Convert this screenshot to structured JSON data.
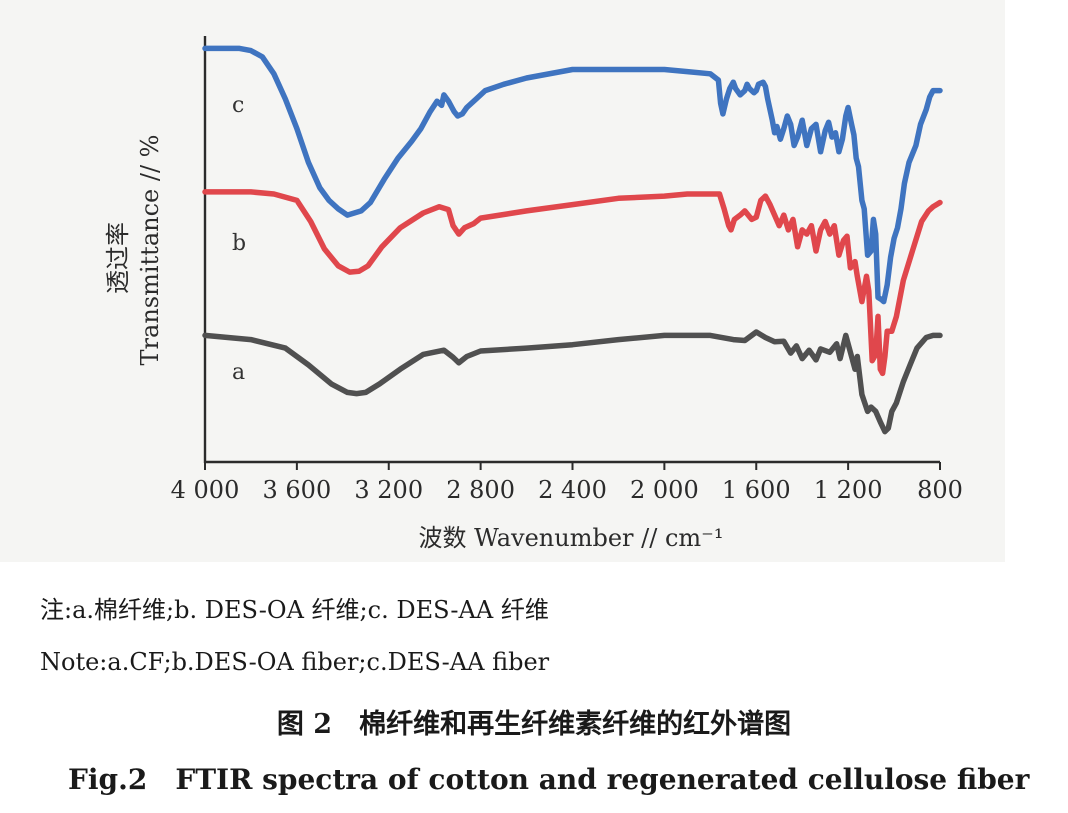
{
  "chart_data": {
    "type": "line",
    "xlabel": "波数 Wavenumber // cm⁻¹",
    "ylabel_cn": "透过率",
    "ylabel_en": "Transmittance // %",
    "xlim": [
      4000,
      800
    ],
    "x_reversed": true,
    "x_ticks": [
      4000,
      3600,
      3200,
      2800,
      2400,
      2000,
      1600,
      1200,
      800
    ],
    "x_tick_labels": [
      "4 000",
      "3 600",
      "3 200",
      "2 800",
      "2 400",
      "2 000",
      "1 600",
      "1 200",
      "800"
    ],
    "y_ticks_shown": false,
    "grid": false,
    "legend": "none",
    "series": [
      {
        "name": "a",
        "color": "#505050",
        "points": [
          [
            4000,
            30.0
          ],
          [
            3800,
            29.0
          ],
          [
            3650,
            27.0
          ],
          [
            3550,
            23.0
          ],
          [
            3450,
            18.5
          ],
          [
            3380,
            16.5
          ],
          [
            3340,
            16.2
          ],
          [
            3300,
            16.5
          ],
          [
            3240,
            18.5
          ],
          [
            3150,
            22.0
          ],
          [
            3050,
            25.5
          ],
          [
            2960,
            26.5
          ],
          [
            2920,
            24.8
          ],
          [
            2895,
            23.5
          ],
          [
            2860,
            25.0
          ],
          [
            2800,
            26.3
          ],
          [
            2600,
            27.0
          ],
          [
            2400,
            27.8
          ],
          [
            2200,
            29.0
          ],
          [
            2000,
            30.0
          ],
          [
            1800,
            30.0
          ],
          [
            1700,
            29.0
          ],
          [
            1650,
            28.8
          ],
          [
            1600,
            30.8
          ],
          [
            1560,
            29.5
          ],
          [
            1520,
            28.5
          ],
          [
            1480,
            28.6
          ],
          [
            1450,
            25.8
          ],
          [
            1425,
            27.5
          ],
          [
            1400,
            24.5
          ],
          [
            1370,
            26.5
          ],
          [
            1340,
            24.2
          ],
          [
            1320,
            26.8
          ],
          [
            1280,
            26.0
          ],
          [
            1250,
            28.0
          ],
          [
            1235,
            24.5
          ],
          [
            1210,
            30.0
          ],
          [
            1200,
            28.0
          ],
          [
            1170,
            22.0
          ],
          [
            1160,
            25.0
          ],
          [
            1140,
            16.0
          ],
          [
            1115,
            12.0
          ],
          [
            1100,
            13.0
          ],
          [
            1080,
            12.0
          ],
          [
            1060,
            9.5
          ],
          [
            1040,
            7.2
          ],
          [
            1025,
            8.0
          ],
          [
            1010,
            12.0
          ],
          [
            990,
            14.0
          ],
          [
            960,
            19.0
          ],
          [
            930,
            23.0
          ],
          [
            900,
            27.0
          ],
          [
            860,
            29.5
          ],
          [
            830,
            30.0
          ],
          [
            800,
            30.0
          ]
        ]
      },
      {
        "name": "b",
        "color": "#e0474c",
        "points": [
          [
            4000,
            64.0
          ],
          [
            3800,
            64.0
          ],
          [
            3700,
            63.5
          ],
          [
            3600,
            62.0
          ],
          [
            3540,
            57.0
          ],
          [
            3480,
            50.5
          ],
          [
            3420,
            46.5
          ],
          [
            3370,
            45.0
          ],
          [
            3330,
            45.2
          ],
          [
            3290,
            46.5
          ],
          [
            3230,
            51.0
          ],
          [
            3150,
            55.5
          ],
          [
            3050,
            59.0
          ],
          [
            2980,
            60.5
          ],
          [
            2940,
            59.8
          ],
          [
            2920,
            56.0
          ],
          [
            2895,
            54.0
          ],
          [
            2870,
            55.5
          ],
          [
            2830,
            56.5
          ],
          [
            2800,
            57.8
          ],
          [
            2600,
            59.5
          ],
          [
            2400,
            61.0
          ],
          [
            2200,
            62.5
          ],
          [
            2000,
            63.0
          ],
          [
            1900,
            63.5
          ],
          [
            1760,
            63.5
          ],
          [
            1740,
            60.0
          ],
          [
            1720,
            56.0
          ],
          [
            1710,
            55.0
          ],
          [
            1695,
            57.5
          ],
          [
            1670,
            58.5
          ],
          [
            1650,
            59.5
          ],
          [
            1620,
            57.5
          ],
          [
            1600,
            58.0
          ],
          [
            1580,
            62.0
          ],
          [
            1560,
            63.0
          ],
          [
            1540,
            61.0
          ],
          [
            1520,
            58.5
          ],
          [
            1500,
            56.0
          ],
          [
            1480,
            58.5
          ],
          [
            1460,
            55.0
          ],
          [
            1440,
            57.5
          ],
          [
            1420,
            51.0
          ],
          [
            1400,
            55.0
          ],
          [
            1380,
            54.0
          ],
          [
            1360,
            56.0
          ],
          [
            1340,
            50.0
          ],
          [
            1320,
            55.0
          ],
          [
            1300,
            57.0
          ],
          [
            1280,
            54.0
          ],
          [
            1260,
            56.0
          ],
          [
            1240,
            49.0
          ],
          [
            1220,
            52.5
          ],
          [
            1205,
            53.5
          ],
          [
            1190,
            46.0
          ],
          [
            1170,
            47.5
          ],
          [
            1160,
            44.0
          ],
          [
            1140,
            38.0
          ],
          [
            1120,
            44.0
          ],
          [
            1110,
            40.5
          ],
          [
            1095,
            24.0
          ],
          [
            1080,
            25.5
          ],
          [
            1070,
            34.5
          ],
          [
            1060,
            22.0
          ],
          [
            1050,
            21.0
          ],
          [
            1040,
            25.0
          ],
          [
            1030,
            31.0
          ],
          [
            1010,
            31.0
          ],
          [
            990,
            34.5
          ],
          [
            960,
            43.0
          ],
          [
            920,
            50.0
          ],
          [
            880,
            57.0
          ],
          [
            850,
            59.5
          ],
          [
            830,
            60.5
          ],
          [
            800,
            61.5
          ]
        ]
      },
      {
        "name": "c",
        "color": "#3f74c0",
        "points": [
          [
            4000,
            98.0
          ],
          [
            3850,
            98.0
          ],
          [
            3800,
            97.5
          ],
          [
            3750,
            96.0
          ],
          [
            3700,
            92.0
          ],
          [
            3650,
            86.0
          ],
          [
            3600,
            79.0
          ],
          [
            3550,
            71.0
          ],
          [
            3500,
            65.0
          ],
          [
            3460,
            62.0
          ],
          [
            3420,
            60.0
          ],
          [
            3380,
            58.5
          ],
          [
            3350,
            59.0
          ],
          [
            3320,
            59.5
          ],
          [
            3280,
            61.5
          ],
          [
            3220,
            67.0
          ],
          [
            3160,
            72.0
          ],
          [
            3100,
            76.0
          ],
          [
            3060,
            79.0
          ],
          [
            3020,
            83.0
          ],
          [
            2990,
            85.5
          ],
          [
            2970,
            84.5
          ],
          [
            2960,
            87.0
          ],
          [
            2940,
            85.5
          ],
          [
            2925,
            84.0
          ],
          [
            2915,
            83.0
          ],
          [
            2900,
            82.0
          ],
          [
            2880,
            82.5
          ],
          [
            2860,
            84.0
          ],
          [
            2820,
            86.0
          ],
          [
            2780,
            88.0
          ],
          [
            2700,
            89.5
          ],
          [
            2600,
            91.0
          ],
          [
            2400,
            93.0
          ],
          [
            2200,
            93.0
          ],
          [
            2000,
            93.0
          ],
          [
            1900,
            92.5
          ],
          [
            1800,
            92.0
          ],
          [
            1765,
            90.5
          ],
          [
            1755,
            85.0
          ],
          [
            1745,
            82.5
          ],
          [
            1730,
            86.0
          ],
          [
            1715,
            88.5
          ],
          [
            1700,
            90.0
          ],
          [
            1690,
            88.5
          ],
          [
            1670,
            87.0
          ],
          [
            1650,
            88.0
          ],
          [
            1640,
            89.5
          ],
          [
            1630,
            88.5
          ],
          [
            1610,
            87.5
          ],
          [
            1600,
            88.0
          ],
          [
            1590,
            89.5
          ],
          [
            1570,
            90.0
          ],
          [
            1560,
            89.0
          ],
          [
            1550,
            86.0
          ],
          [
            1530,
            81.0
          ],
          [
            1520,
            78.0
          ],
          [
            1510,
            79.5
          ],
          [
            1495,
            76.5
          ],
          [
            1480,
            79.0
          ],
          [
            1465,
            82.0
          ],
          [
            1450,
            80.0
          ],
          [
            1435,
            75.0
          ],
          [
            1420,
            77.0
          ],
          [
            1400,
            81.0
          ],
          [
            1380,
            75.0
          ],
          [
            1360,
            79.0
          ],
          [
            1340,
            80.0
          ],
          [
            1320,
            73.5
          ],
          [
            1300,
            78.5
          ],
          [
            1285,
            80.5
          ],
          [
            1270,
            77.0
          ],
          [
            1255,
            78.0
          ],
          [
            1240,
            73.5
          ],
          [
            1225,
            76.5
          ],
          [
            1210,
            82.0
          ],
          [
            1200,
            84.0
          ],
          [
            1185,
            80.0
          ],
          [
            1175,
            77.5
          ],
          [
            1165,
            72.0
          ],
          [
            1155,
            70.0
          ],
          [
            1140,
            62.0
          ],
          [
            1130,
            60.0
          ],
          [
            1115,
            49.0
          ],
          [
            1100,
            50.0
          ],
          [
            1090,
            57.5
          ],
          [
            1080,
            54.0
          ],
          [
            1070,
            39.0
          ],
          [
            1055,
            38.5
          ],
          [
            1045,
            38.0
          ],
          [
            1030,
            42.0
          ],
          [
            1015,
            48.5
          ],
          [
            1000,
            53.0
          ],
          [
            985,
            55.5
          ],
          [
            970,
            60.0
          ],
          [
            955,
            66.0
          ],
          [
            935,
            71.0
          ],
          [
            905,
            75.0
          ],
          [
            885,
            80.0
          ],
          [
            860,
            83.5
          ],
          [
            845,
            86.5
          ],
          [
            830,
            88.0
          ],
          [
            800,
            88.0
          ]
        ]
      }
    ]
  },
  "series_letters": {
    "a": "a",
    "b": "b",
    "c": "c"
  },
  "notes": {
    "cn": "注:a.棉纤维;b. DES-OA 纤维;c. DES-AA 纤维",
    "en": "Note:a.CF;b.DES-OA fiber;c.DES-AA fiber"
  },
  "captions": {
    "cn": "图 2　棉纤维和再生纤维素纤维的红外谱图",
    "en": "Fig.2　FTIR spectra of cotton and regenerated cellulose fiber"
  }
}
